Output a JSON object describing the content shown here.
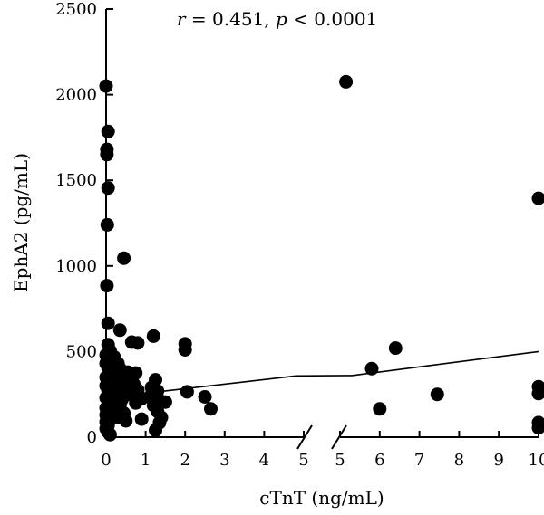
{
  "chart_data": {
    "type": "scatter",
    "title": "",
    "xlabel": "cTnT (ng/mL)",
    "ylabel": "EphA2 (pg/mL)",
    "annotation": {
      "r_symbol": "r",
      "r_text": " = 0.451, ",
      "p_symbol": "p",
      "p_text": " < 0.0001"
    },
    "ylim": [
      0,
      2500
    ],
    "y_ticks": [
      "0",
      "500",
      "1000",
      "1500",
      "2000",
      "2500"
    ],
    "x_axis_broken": true,
    "x_segments": [
      {
        "xlim": [
          0,
          5
        ],
        "ticks": [
          "0",
          "1",
          "2",
          "3",
          "4",
          "5"
        ]
      },
      {
        "xlim": [
          5,
          10
        ],
        "ticks": [
          "5",
          "6",
          "7",
          "8",
          "9",
          "10"
        ]
      }
    ],
    "marker_color": "#000000",
    "points": [
      {
        "x": 0.0,
        "y": 2050
      },
      {
        "x": 0.05,
        "y": 1785
      },
      {
        "x": 0.02,
        "y": 1680
      },
      {
        "x": 0.02,
        "y": 1650
      },
      {
        "x": 0.05,
        "y": 1455
      },
      {
        "x": 0.03,
        "y": 1240
      },
      {
        "x": 0.45,
        "y": 1045
      },
      {
        "x": 0.02,
        "y": 885
      },
      {
        "x": 0.05,
        "y": 665
      },
      {
        "x": 0.05,
        "y": 540
      },
      {
        "x": 0.1,
        "y": 505
      },
      {
        "x": 0.0,
        "y": 480
      },
      {
        "x": 0.05,
        "y": 455
      },
      {
        "x": 0.0,
        "y": 430
      },
      {
        "x": 0.05,
        "y": 400
      },
      {
        "x": 0.1,
        "y": 385
      },
      {
        "x": 0.0,
        "y": 350
      },
      {
        "x": 0.08,
        "y": 320
      },
      {
        "x": 0.0,
        "y": 300
      },
      {
        "x": 0.05,
        "y": 270
      },
      {
        "x": 0.1,
        "y": 250
      },
      {
        "x": 0.0,
        "y": 230
      },
      {
        "x": 0.05,
        "y": 210
      },
      {
        "x": 0.1,
        "y": 190
      },
      {
        "x": 0.0,
        "y": 170
      },
      {
        "x": 0.05,
        "y": 150
      },
      {
        "x": 0.0,
        "y": 130
      },
      {
        "x": 0.05,
        "y": 110
      },
      {
        "x": 0.0,
        "y": 90
      },
      {
        "x": 0.05,
        "y": 70
      },
      {
        "x": 0.0,
        "y": 50
      },
      {
        "x": 0.05,
        "y": 30
      },
      {
        "x": 0.1,
        "y": 15
      },
      {
        "x": 0.2,
        "y": 470
      },
      {
        "x": 0.3,
        "y": 430
      },
      {
        "x": 0.35,
        "y": 400
      },
      {
        "x": 0.25,
        "y": 365
      },
      {
        "x": 0.3,
        "y": 335
      },
      {
        "x": 0.4,
        "y": 300
      },
      {
        "x": 0.2,
        "y": 280
      },
      {
        "x": 0.3,
        "y": 250
      },
      {
        "x": 0.4,
        "y": 220
      },
      {
        "x": 0.35,
        "y": 190
      },
      {
        "x": 0.25,
        "y": 165
      },
      {
        "x": 0.45,
        "y": 140
      },
      {
        "x": 0.3,
        "y": 115
      },
      {
        "x": 0.5,
        "y": 95
      },
      {
        "x": 0.35,
        "y": 625
      },
      {
        "x": 0.65,
        "y": 555
      },
      {
        "x": 0.8,
        "y": 550
      },
      {
        "x": 0.55,
        "y": 380
      },
      {
        "x": 0.75,
        "y": 375
      },
      {
        "x": 0.6,
        "y": 335
      },
      {
        "x": 0.7,
        "y": 310
      },
      {
        "x": 0.8,
        "y": 275
      },
      {
        "x": 0.6,
        "y": 250
      },
      {
        "x": 0.9,
        "y": 225
      },
      {
        "x": 0.75,
        "y": 200
      },
      {
        "x": 0.9,
        "y": 105
      },
      {
        "x": 1.2,
        "y": 590
      },
      {
        "x": 1.25,
        "y": 335
      },
      {
        "x": 1.15,
        "y": 290
      },
      {
        "x": 1.3,
        "y": 270
      },
      {
        "x": 1.1,
        "y": 235
      },
      {
        "x": 1.35,
        "y": 215
      },
      {
        "x": 1.5,
        "y": 205
      },
      {
        "x": 1.2,
        "y": 185
      },
      {
        "x": 1.3,
        "y": 150
      },
      {
        "x": 1.4,
        "y": 115
      },
      {
        "x": 1.35,
        "y": 85
      },
      {
        "x": 1.25,
        "y": 40
      },
      {
        "x": 2.0,
        "y": 545
      },
      {
        "x": 2.0,
        "y": 510
      },
      {
        "x": 2.05,
        "y": 265
      },
      {
        "x": 2.5,
        "y": 235
      },
      {
        "x": 2.65,
        "y": 165
      },
      {
        "x": 5.15,
        "y": 2075
      },
      {
        "x": 5.8,
        "y": 400
      },
      {
        "x": 6.0,
        "y": 165
      },
      {
        "x": 6.4,
        "y": 520
      },
      {
        "x": 7.45,
        "y": 250
      },
      {
        "x": 10.0,
        "y": 1395
      },
      {
        "x": 10.0,
        "y": 295
      },
      {
        "x": 10.0,
        "y": 255
      },
      {
        "x": 10.0,
        "y": 85
      },
      {
        "x": 10.0,
        "y": 55
      }
    ],
    "trend_line": [
      {
        "x": 0.0,
        "y": 230
      },
      {
        "x": 4.8,
        "y": 358
      },
      {
        "x": 5.3,
        "y": 360
      },
      {
        "x": 10.0,
        "y": 500
      }
    ]
  }
}
